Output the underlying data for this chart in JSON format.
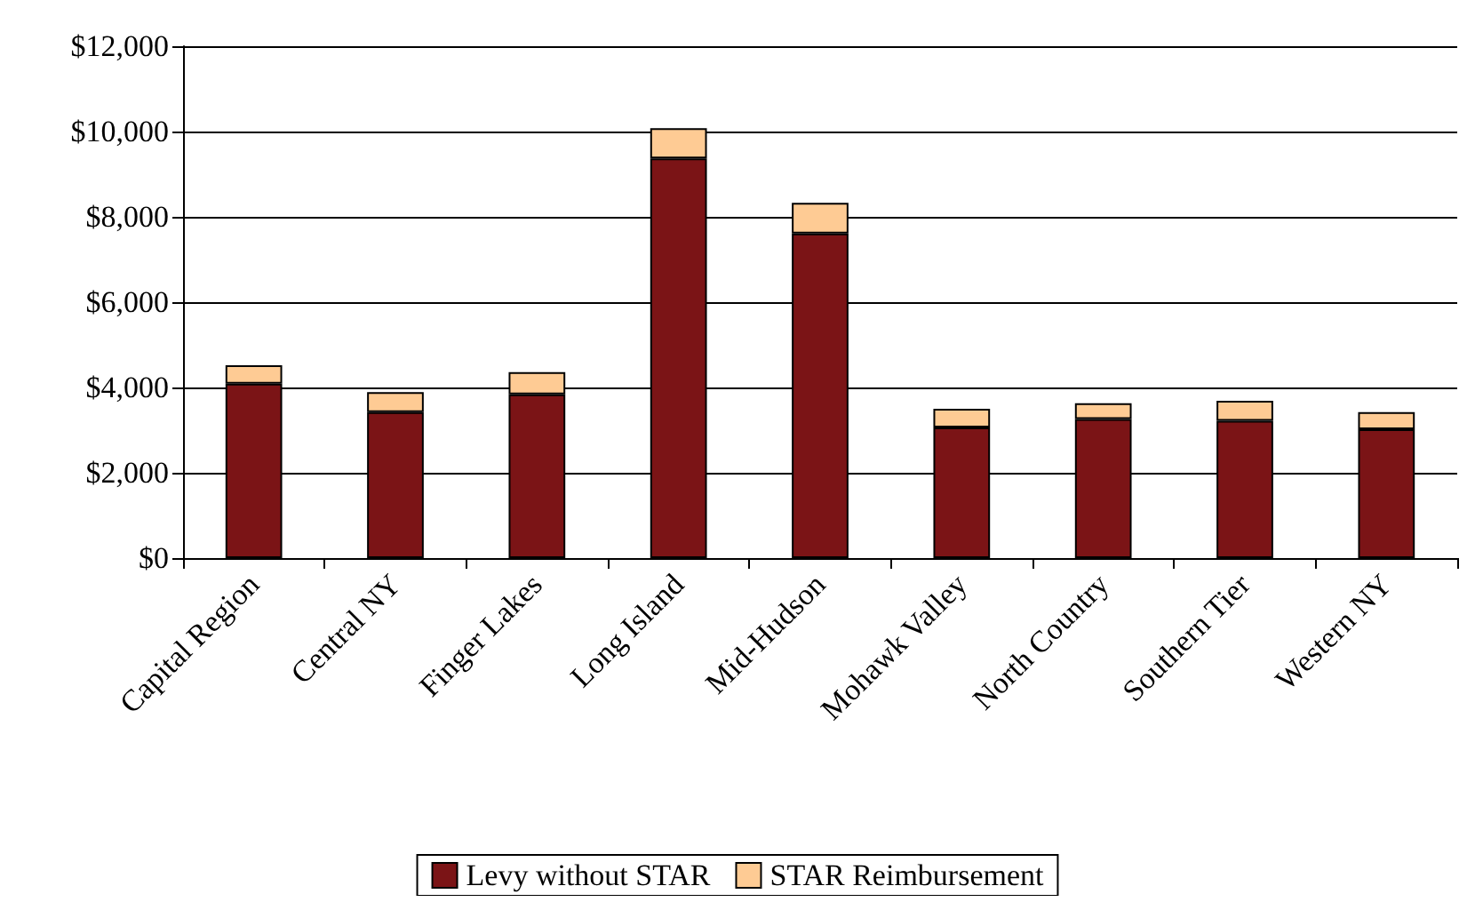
{
  "chart_data": {
    "type": "bar",
    "stacked": true,
    "categories": [
      "Capital Region",
      "Central NY",
      "Finger Lakes",
      "Long Island",
      "Mid-Hudson",
      "Mohawk Valley",
      "North Country",
      "Southern Tier",
      "Western NY"
    ],
    "series": [
      {
        "name": "Levy without STAR",
        "color": "#7b1416",
        "values": [
          4090,
          3420,
          3840,
          9370,
          7610,
          3060,
          3260,
          3220,
          3020
        ]
      },
      {
        "name": "STAR Reimbursement",
        "color": "#fecb94",
        "values": [
          430,
          470,
          520,
          710,
          720,
          440,
          370,
          470,
          400
        ]
      }
    ],
    "ylim": [
      0,
      12000
    ],
    "yticks": [
      {
        "value": 0,
        "label": "$0"
      },
      {
        "value": 2000,
        "label": "$2,000"
      },
      {
        "value": 4000,
        "label": "$4,000"
      },
      {
        "value": 6000,
        "label": "$6,000"
      },
      {
        "value": 8000,
        "label": "$8,000"
      },
      {
        "value": 10000,
        "label": "$10,000"
      },
      {
        "value": 12000,
        "label": "$12,000"
      }
    ],
    "grid": "y",
    "legend": "bottom"
  }
}
